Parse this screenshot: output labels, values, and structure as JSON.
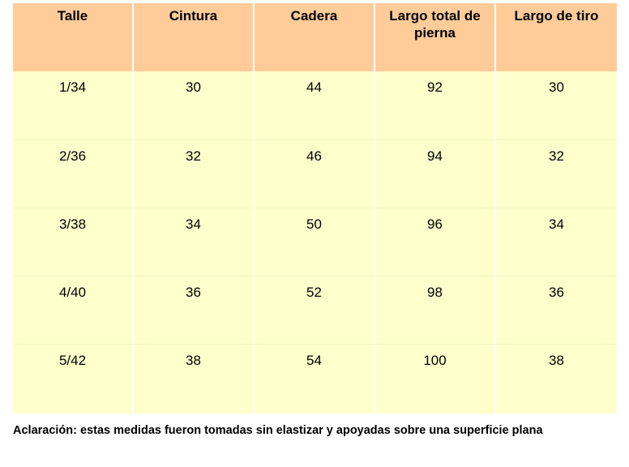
{
  "table": {
    "headers": [
      "Talle",
      "Cintura",
      "Cadera",
      "Largo total de pierna",
      "Largo de tiro"
    ],
    "rows": [
      [
        "1/34",
        "30",
        "44",
        "92",
        "30"
      ],
      [
        "2/36",
        "32",
        "46",
        "94",
        "32"
      ],
      [
        "3/38",
        "34",
        "50",
        "96",
        "34"
      ],
      [
        "4/40",
        "36",
        "52",
        "98",
        "36"
      ],
      [
        "5/42",
        "38",
        "54",
        "100",
        "38"
      ]
    ]
  },
  "note": "Aclaración: estas medidas fueron tomadas sin elastizar y apoyadas sobre una superficie plana",
  "colors": {
    "header_bg": "#ffcc99",
    "cell_bg": "#ffffcc"
  }
}
